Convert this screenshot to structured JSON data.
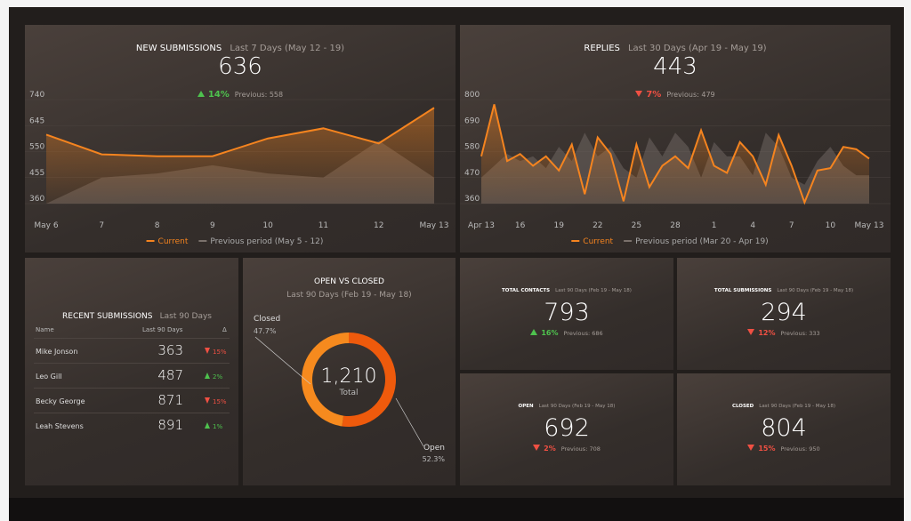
{
  "new_submissions": {
    "title": "NEW SUBMISSIONS",
    "subtitle": "Last 7 Days (May 12 - 19)",
    "value": 636,
    "change": "14%",
    "direction": "up",
    "previous": "Previous: 558",
    "chart_data": {
      "type": "line",
      "categories": [
        "May 6",
        "7",
        "8",
        "9",
        "10",
        "11",
        "12",
        "May 13"
      ],
      "series": [
        {
          "name": "Current",
          "color": "#f5841f",
          "values": [
            612,
            540,
            533,
            533,
            598,
            635,
            580,
            710
          ]
        },
        {
          "name": "Previous period (May 5 - 12)",
          "color": "#7a716c",
          "values": [
            360,
            455,
            470,
            500,
            470,
            455,
            590,
            455
          ]
        }
      ],
      "ylim": [
        360,
        740
      ],
      "yticks": [
        360,
        455,
        550,
        645,
        740
      ]
    }
  },
  "replies": {
    "title": "REPLIES",
    "subtitle": "Last 30 Days (Apr 19 - May 19)",
    "value": 443,
    "change": "7%",
    "direction": "down",
    "previous": "Previous: 479",
    "chart_data": {
      "type": "line",
      "categories": [
        "Apr 13",
        null,
        null,
        "16",
        null,
        null,
        "19",
        null,
        null,
        "22",
        null,
        null,
        "25",
        null,
        null,
        "28",
        null,
        null,
        "1",
        null,
        null,
        "4",
        null,
        null,
        "7",
        null,
        null,
        "10",
        null,
        null,
        "May 13"
      ],
      "series": [
        {
          "name": "Current",
          "color": "#f5841f",
          "values": [
            560,
            780,
            540,
            570,
            520,
            560,
            500,
            610,
            400,
            640,
            570,
            370,
            610,
            430,
            520,
            560,
            510,
            670,
            520,
            490,
            620,
            560,
            440,
            650,
            520,
            365,
            500,
            510,
            600,
            590,
            550
          ]
        },
        {
          "name": "Previous period (Mar 20 - Apr 19)",
          "color": "#7a716c",
          "values": [
            470,
            520,
            570,
            540,
            560,
            510,
            600,
            540,
            660,
            560,
            600,
            510,
            470,
            640,
            560,
            660,
            600,
            470,
            620,
            560,
            560,
            480,
            660,
            600,
            470,
            440,
            540,
            600,
            520,
            480,
            480
          ]
        }
      ],
      "ylim": [
        360,
        800
      ],
      "yticks": [
        360,
        470,
        580,
        690,
        800
      ]
    }
  },
  "recent": {
    "title": "RECENT SUBMISSIONS",
    "subtitle": "Last 90 Days",
    "table": {
      "header": [
        "Name",
        "Last 90 Days",
        "Δ"
      ],
      "rows": [
        [
          "Mike Jonson",
          363,
          "15%",
          "down"
        ],
        [
          "Leo Gill",
          487,
          "2%",
          "up"
        ],
        [
          "Becky George",
          871,
          "15%",
          "down"
        ],
        [
          "Leah Stevens",
          891,
          "1%",
          "up"
        ]
      ]
    }
  },
  "open_closed": {
    "title": "OPEN VS CLOSED",
    "subtitle": "Last 90 Days (Feb 19 - May 18)",
    "total": "1,210",
    "total_caption": "Total",
    "chart_data": {
      "type": "donut",
      "categories": [
        "Closed",
        "Open"
      ],
      "values": [
        47.7,
        52.3
      ],
      "value_labels": [
        "47.7%",
        "52.3%"
      ],
      "colors": [
        "#f68a1e",
        "#ee5a0c"
      ]
    }
  },
  "kpis": [
    {
      "title": "TOTAL CONTACTS",
      "subtitle": "Last 90 Days (Feb 19 - May 18)",
      "value": 793,
      "change": "16%",
      "direction": "up",
      "previous": "Previous: 686"
    },
    {
      "title": "TOTAL SUBMISSIONS",
      "subtitle": "Last 90 Days (Feb 19 - May 18)",
      "value": 294,
      "change": "12%",
      "direction": "down",
      "previous": "Previous: 333"
    },
    {
      "title": "OPEN",
      "subtitle": "Last 90 Days (Feb 19 - May 18)",
      "value": 692,
      "change": "2%",
      "direction": "down",
      "previous": "Previous: 708"
    },
    {
      "title": "CLOSED",
      "subtitle": "Last 90 Days (Feb 19 - May 18)",
      "value": 804,
      "change": "15%",
      "direction": "down",
      "previous": "Previous: 950"
    }
  ]
}
